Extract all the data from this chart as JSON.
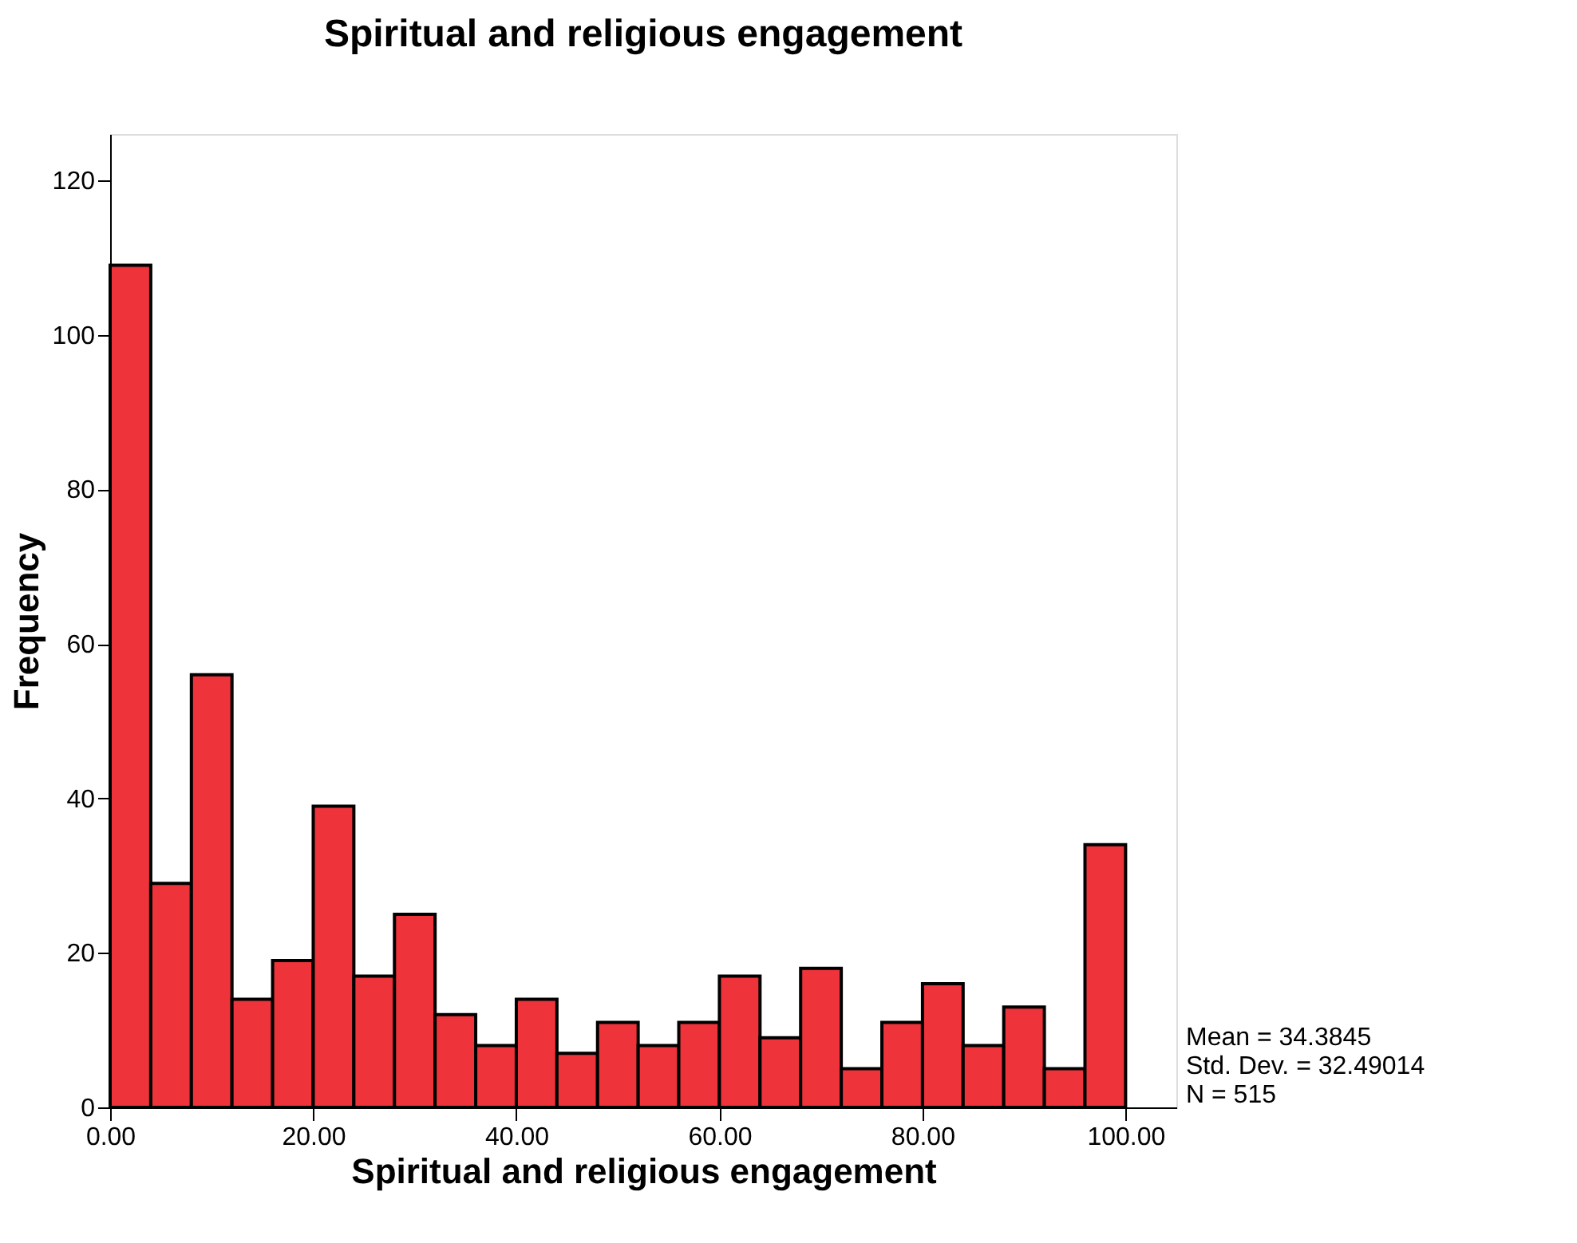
{
  "chart_data": {
    "type": "histogram",
    "title": "Spiritual and religious engagement",
    "xlabel": "Spiritual and religious engagement",
    "ylabel": "Frequency",
    "bins": [
      0,
      4,
      8,
      12,
      16,
      20,
      24,
      28,
      32,
      36,
      40,
      44,
      48,
      52,
      56,
      60,
      64,
      68,
      72,
      76,
      80,
      84,
      88,
      92,
      96,
      100
    ],
    "values": [
      109,
      29,
      56,
      14,
      19,
      39,
      17,
      25,
      12,
      8,
      14,
      7,
      11,
      8,
      11,
      17,
      9,
      18,
      5,
      11,
      16,
      8,
      13,
      5,
      34
    ],
    "color": "#ee333a",
    "xlim": [
      0,
      105
    ],
    "ylim": [
      0,
      126
    ],
    "xticks": [
      {
        "value": 0,
        "label": "0.00"
      },
      {
        "value": 20,
        "label": "20.00"
      },
      {
        "value": 40,
        "label": "40.00"
      },
      {
        "value": 60,
        "label": "60.00"
      },
      {
        "value": 80,
        "label": "80.00"
      },
      {
        "value": 100,
        "label": "100.00"
      }
    ],
    "yticks": [
      0,
      20,
      40,
      60,
      80,
      100,
      120
    ],
    "grid": false,
    "annotations": [
      "Mean = 34.3845",
      "Std. Dev. = 32.49014",
      "N = 515"
    ]
  }
}
